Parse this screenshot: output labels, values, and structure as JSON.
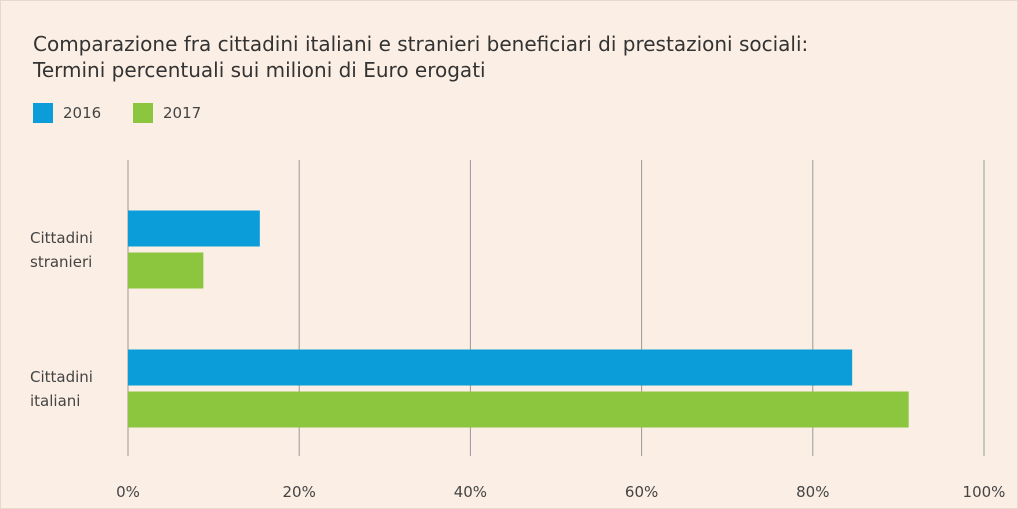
{
  "chart_data": {
    "type": "hbar",
    "title": "Comparazione fra cittadini italiani e stranieri beneficiari di prestazioni sociali:",
    "subtitle": "Termini percentuali sui milioni di Euro erogati",
    "categories": [
      "Cittadini stranieri",
      "Cittadini italiani"
    ],
    "series": [
      {
        "name": "2016",
        "color": "#0a9dd9",
        "values": [
          15.4,
          84.6
        ]
      },
      {
        "name": "2017",
        "color": "#8cc63f",
        "values": [
          8.8,
          91.2
        ]
      }
    ],
    "xlim": [
      0,
      100
    ],
    "xticks": [
      {
        "value": 0,
        "label": "0%"
      },
      {
        "value": 20,
        "label": "20%"
      },
      {
        "value": 40,
        "label": "40%"
      },
      {
        "value": 60,
        "label": "60%"
      },
      {
        "value": 80,
        "label": "80%"
      },
      {
        "value": 100,
        "label": "100%"
      }
    ],
    "grid": true
  }
}
